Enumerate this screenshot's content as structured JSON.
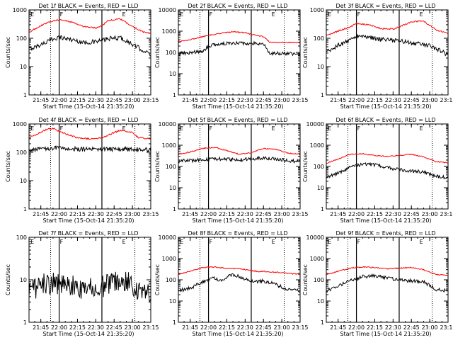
{
  "shared": {
    "ylabel": "Counts/sec",
    "xlabel": "Start Time (15-Oct-14 21:35:20)",
    "x_ticks": [
      "21:45",
      "22:00",
      "22:15",
      "22:30",
      "22:45",
      "23:00",
      "23:15"
    ],
    "markers": {
      "F": "F",
      "E": "E"
    },
    "colors": {
      "events": "#000000",
      "lld": "#ff0000"
    }
  },
  "chart_data": [
    {
      "type": "line",
      "title": "Det 1f BLACK = Events, RED = LLD",
      "xlabel": "Start Time (15-Oct-14 21:35:20)",
      "ylabel": "Counts/sec",
      "xlim": [
        "21:35:20",
        "23:15:00"
      ],
      "ylim": [
        1,
        1000
      ],
      "yscale": "log",
      "y_ticks": [
        "1",
        "10",
        "100",
        "1000"
      ],
      "dotted_lines": [
        "21:53",
        "23:02"
      ],
      "solid_lines": [
        "22:00",
        "22:35"
      ],
      "markers": [
        {
          "label": "E",
          "at": "21:36"
        },
        {
          "label": "F",
          "at": "22:00"
        },
        {
          "label": "E",
          "at": "22:51"
        }
      ],
      "series": [
        {
          "name": "Events",
          "color": "#000000",
          "x": [
            "21:35",
            "21:45",
            "21:55",
            "22:00",
            "22:10",
            "22:20",
            "22:30",
            "22:35",
            "22:40",
            "22:50",
            "23:00",
            "23:10",
            "23:15"
          ],
          "y": [
            40,
            60,
            95,
            110,
            90,
            70,
            75,
            85,
            95,
            105,
            60,
            35,
            25
          ]
        },
        {
          "name": "LLD",
          "color": "#ff0000",
          "x": [
            "21:35",
            "21:45",
            "21:55",
            "22:00",
            "22:10",
            "22:20",
            "22:30",
            "22:35",
            "22:40",
            "22:50",
            "23:00",
            "23:10",
            "23:15"
          ],
          "y": [
            160,
            280,
            420,
            450,
            380,
            260,
            230,
            280,
            420,
            480,
            260,
            160,
            150
          ]
        }
      ]
    },
    {
      "type": "line",
      "title": "Det 2f BLACK = Events, RED = LLD",
      "xlabel": "Start Time (15-Oct-14 21:35:20)",
      "ylabel": "Counts/sec",
      "xlim": [
        "21:35:20",
        "23:15:00"
      ],
      "ylim": [
        1,
        10000
      ],
      "yscale": "log",
      "y_ticks": [
        "1",
        "10",
        "100",
        "1000",
        "10000"
      ],
      "dotted_lines": [
        "21:53",
        "23:02"
      ],
      "solid_lines": [
        "22:00",
        "22:35"
      ],
      "markers": [
        {
          "label": "E",
          "at": "21:36"
        },
        {
          "label": "F",
          "at": "22:00"
        },
        {
          "label": "E",
          "at": "22:51"
        }
      ],
      "series": [
        {
          "name": "Events",
          "color": "#000000",
          "x": [
            "21:35",
            "21:45",
            "21:55",
            "22:00",
            "22:10",
            "22:20",
            "22:30",
            "22:35",
            "22:45",
            "22:50",
            "23:00",
            "23:15"
          ],
          "y": [
            85,
            100,
            110,
            200,
            250,
            280,
            270,
            270,
            260,
            90,
            90,
            85
          ]
        },
        {
          "name": "LLD",
          "color": "#ff0000",
          "x": [
            "21:35",
            "21:45",
            "21:55",
            "22:00",
            "22:10",
            "22:20",
            "22:30",
            "22:35",
            "22:45",
            "22:50",
            "23:00",
            "23:15"
          ],
          "y": [
            320,
            400,
            550,
            650,
            800,
            950,
            850,
            700,
            550,
            300,
            300,
            290
          ]
        }
      ]
    },
    {
      "type": "line",
      "title": "Det 3f BLACK = Events, RED = LLD",
      "xlabel": "Start Time (15-Oct-14 21:35:20)",
      "ylabel": "Counts/sec",
      "xlim": [
        "21:35:20",
        "23:15:00"
      ],
      "ylim": [
        1,
        1000
      ],
      "yscale": "log",
      "y_ticks": [
        "1",
        "10",
        "100",
        "1000"
      ],
      "dotted_lines": [
        "21:53",
        "23:02"
      ],
      "solid_lines": [
        "22:00",
        "22:35"
      ],
      "markers": [
        {
          "label": "E",
          "at": "21:36"
        },
        {
          "label": "F",
          "at": "22:00"
        },
        {
          "label": "E",
          "at": "22:51"
        }
      ],
      "series": [
        {
          "name": "Events",
          "color": "#000000",
          "x": [
            "21:35",
            "21:45",
            "21:55",
            "22:00",
            "22:10",
            "22:20",
            "22:30",
            "22:35",
            "22:45",
            "23:00",
            "23:10",
            "23:15"
          ],
          "y": [
            30,
            55,
            85,
            120,
            110,
            90,
            85,
            80,
            70,
            55,
            35,
            25
          ]
        },
        {
          "name": "LLD",
          "color": "#ff0000",
          "x": [
            "21:35",
            "21:45",
            "21:55",
            "22:00",
            "22:10",
            "22:20",
            "22:30",
            "22:35",
            "22:45",
            "22:55",
            "23:05",
            "23:15"
          ],
          "y": [
            120,
            180,
            250,
            340,
            300,
            220,
            210,
            250,
            380,
            400,
            200,
            150
          ]
        }
      ]
    },
    {
      "type": "line",
      "title": "Det 4f BLACK = Events, RED = LLD",
      "xlabel": "Start Time (15-Oct-14 21:35:20)",
      "ylabel": "Counts/sec",
      "xlim": [
        "21:35:20",
        "23:15:00"
      ],
      "ylim": [
        1,
        1000
      ],
      "yscale": "log",
      "y_ticks": [
        "1",
        "10",
        "100",
        "1000"
      ],
      "dotted_lines": [
        "21:53",
        "23:02"
      ],
      "solid_lines": [
        "22:00",
        "22:35"
      ],
      "markers": [
        {
          "label": "E",
          "at": "21:36"
        },
        {
          "label": "F",
          "at": "22:00"
        },
        {
          "label": "E",
          "at": "22:51"
        }
      ],
      "series": [
        {
          "name": "Events",
          "color": "#000000",
          "x": [
            "21:35",
            "21:45",
            "21:55",
            "22:05",
            "22:15",
            "22:25",
            "22:35",
            "22:45",
            "22:55",
            "23:05",
            "23:15"
          ],
          "y": [
            120,
            130,
            140,
            135,
            130,
            125,
            130,
            125,
            130,
            125,
            120
          ]
        },
        {
          "name": "LLD",
          "color": "#ff0000",
          "x": [
            "21:35",
            "21:40",
            "21:50",
            "21:55",
            "22:05",
            "22:15",
            "22:25",
            "22:35",
            "22:45",
            "22:50",
            "23:00",
            "23:05",
            "23:15"
          ],
          "y": [
            320,
            400,
            650,
            700,
            450,
            320,
            300,
            320,
            500,
            600,
            500,
            320,
            300
          ]
        }
      ]
    },
    {
      "type": "line",
      "title": "Det 5f BLACK = Events, RED = LLD",
      "xlabel": "Start Time (15-Oct-14 21:35:20)",
      "ylabel": "Counts/sec",
      "xlim": [
        "21:35:20",
        "23:15:00"
      ],
      "ylim": [
        1,
        10000
      ],
      "yscale": "log",
      "y_ticks": [
        "1",
        "10",
        "100",
        "1000",
        "10000"
      ],
      "dotted_lines": [
        "21:53",
        "23:02"
      ],
      "solid_lines": [
        "22:00",
        "22:35"
      ],
      "markers": [
        {
          "label": "E",
          "at": "21:36"
        },
        {
          "label": "F",
          "at": "22:00"
        },
        {
          "label": "E",
          "at": "22:51"
        }
      ],
      "series": [
        {
          "name": "Events",
          "color": "#000000",
          "x": [
            "21:35",
            "21:45",
            "21:55",
            "22:05",
            "22:15",
            "22:25",
            "22:35",
            "22:45",
            "22:55",
            "23:05",
            "23:15"
          ],
          "y": [
            180,
            190,
            210,
            230,
            220,
            200,
            230,
            250,
            220,
            190,
            170
          ]
        },
        {
          "name": "LLD",
          "color": "#ff0000",
          "x": [
            "21:35",
            "21:45",
            "21:55",
            "22:05",
            "22:15",
            "22:25",
            "22:35",
            "22:45",
            "22:55",
            "23:05",
            "23:15"
          ],
          "y": [
            380,
            480,
            700,
            800,
            550,
            380,
            450,
            700,
            650,
            420,
            380
          ]
        }
      ]
    },
    {
      "type": "line",
      "title": "Det 6f BLACK = Events, RED = LLD",
      "xlabel": "Start Time (15-Oct-14 21:35:20)",
      "ylabel": "Counts/sec",
      "xlim": [
        "21:35:20",
        "23:15:00"
      ],
      "ylim": [
        1,
        10000
      ],
      "yscale": "log",
      "y_ticks": [
        "1",
        "10",
        "100",
        "1000",
        "10000"
      ],
      "dotted_lines": [
        "21:53",
        "23:02"
      ],
      "solid_lines": [
        "22:00",
        "22:35"
      ],
      "markers": [
        {
          "label": "E",
          "at": "21:36"
        },
        {
          "label": "F",
          "at": "22:00"
        },
        {
          "label": "E",
          "at": "22:51"
        }
      ],
      "series": [
        {
          "name": "Events",
          "color": "#000000",
          "x": [
            "21:35",
            "21:45",
            "21:55",
            "22:05",
            "22:15",
            "22:25",
            "22:35",
            "22:45",
            "22:55",
            "23:05",
            "23:15"
          ],
          "y": [
            30,
            50,
            90,
            130,
            120,
            90,
            70,
            60,
            55,
            35,
            30
          ]
        },
        {
          "name": "LLD",
          "color": "#ff0000",
          "x": [
            "21:35",
            "21:45",
            "21:55",
            "22:05",
            "22:15",
            "22:25",
            "22:35",
            "22:45",
            "22:55",
            "23:05",
            "23:15"
          ],
          "y": [
            140,
            220,
            380,
            400,
            330,
            300,
            330,
            380,
            280,
            170,
            150
          ]
        }
      ]
    },
    {
      "type": "line",
      "title": "Det 7f BLACK = Events, RED = LLD",
      "xlabel": "Start Time (15-Oct-14 21:35:20)",
      "ylabel": "Counts/sec",
      "xlim": [
        "21:35:20",
        "23:15:00"
      ],
      "ylim": [
        1,
        100
      ],
      "yscale": "log",
      "y_ticks": [
        "1",
        "10",
        "100"
      ],
      "dotted_lines": [
        "21:53",
        "23:02"
      ],
      "solid_lines": [
        "22:00",
        "22:35"
      ],
      "markers": [
        {
          "label": "E",
          "at": "21:36"
        },
        {
          "label": "F",
          "at": "22:00"
        },
        {
          "label": "E",
          "at": "22:51"
        }
      ],
      "series": [
        {
          "name": "Events",
          "color": "#000000",
          "x": [
            "21:35",
            "21:45",
            "21:55",
            "22:05",
            "22:15",
            "22:25",
            "22:35",
            "22:45",
            "22:55",
            "23:05",
            "23:15"
          ],
          "y": [
            5,
            7,
            9,
            8,
            7,
            6,
            7,
            10,
            9,
            6,
            5
          ]
        }
      ]
    },
    {
      "type": "line",
      "title": "Det 8f BLACK = Events, RED = LLD",
      "xlabel": "Start Time (15-Oct-14 21:35:20)",
      "ylabel": "Counts/sec",
      "xlim": [
        "21:35:20",
        "23:15:00"
      ],
      "ylim": [
        1,
        10000
      ],
      "yscale": "log",
      "y_ticks": [
        "1",
        "10",
        "100",
        "1000",
        "10000"
      ],
      "dotted_lines": [
        "21:53",
        "23:02"
      ],
      "solid_lines": [
        "22:00",
        "22:35"
      ],
      "markers": [
        {
          "label": "E",
          "at": "21:36"
        },
        {
          "label": "F",
          "at": "22:00"
        },
        {
          "label": "E",
          "at": "22:51"
        }
      ],
      "series": [
        {
          "name": "Events",
          "color": "#000000",
          "x": [
            "21:35",
            "21:45",
            "21:55",
            "22:05",
            "22:10",
            "22:15",
            "22:20",
            "22:25",
            "22:30",
            "22:40",
            "22:45",
            "22:55",
            "23:05",
            "23:15"
          ],
          "y": [
            30,
            40,
            80,
            120,
            90,
            130,
            180,
            140,
            110,
            80,
            90,
            60,
            35,
            30
          ]
        },
        {
          "name": "LLD",
          "color": "#ff0000",
          "x": [
            "21:35",
            "21:45",
            "21:55",
            "22:05",
            "22:15",
            "22:25",
            "22:30",
            "22:40",
            "22:45",
            "22:55",
            "23:05",
            "23:15"
          ],
          "y": [
            180,
            250,
            380,
            400,
            350,
            330,
            300,
            250,
            250,
            230,
            200,
            180
          ]
        }
      ]
    },
    {
      "type": "line",
      "title": "Det 9f BLACK = Events, RED = LLD",
      "xlabel": "Start Time (15-Oct-14 21:35:20)",
      "ylabel": "Counts/sec",
      "xlim": [
        "21:35:20",
        "23:15:00"
      ],
      "ylim": [
        1,
        10000
      ],
      "yscale": "log",
      "y_ticks": [
        "1",
        "10",
        "100",
        "1000",
        "10000"
      ],
      "dotted_lines": [
        "21:53",
        "23:02"
      ],
      "solid_lines": [
        "22:00",
        "22:35"
      ],
      "markers": [
        {
          "label": "E",
          "at": "21:36"
        },
        {
          "label": "F",
          "at": "22:00"
        },
        {
          "label": "E",
          "at": "22:51"
        }
      ],
      "series": [
        {
          "name": "Events",
          "color": "#000000",
          "x": [
            "21:35",
            "21:45",
            "21:55",
            "22:05",
            "22:15",
            "22:25",
            "22:35",
            "22:45",
            "22:55",
            "23:05",
            "23:15"
          ],
          "y": [
            30,
            50,
            90,
            140,
            150,
            120,
            100,
            90,
            80,
            35,
            30
          ]
        },
        {
          "name": "LLD",
          "color": "#ff0000",
          "x": [
            "21:35",
            "21:45",
            "21:55",
            "22:05",
            "22:15",
            "22:25",
            "22:35",
            "22:45",
            "22:55",
            "23:05",
            "23:15"
          ],
          "y": [
            170,
            250,
            350,
            400,
            380,
            330,
            350,
            380,
            300,
            180,
            160
          ]
        }
      ]
    }
  ]
}
